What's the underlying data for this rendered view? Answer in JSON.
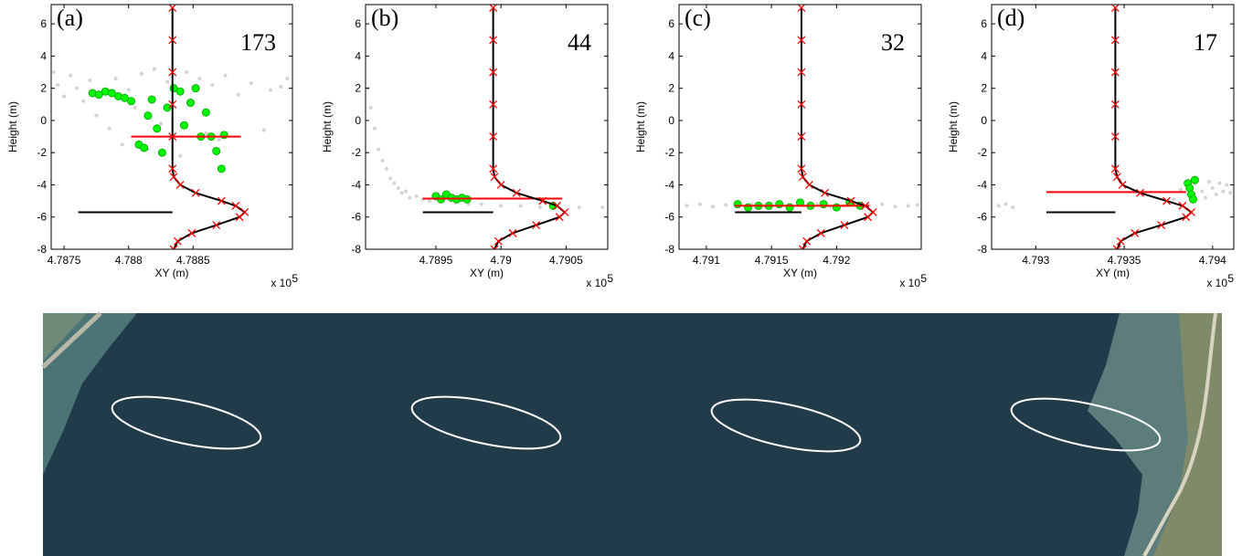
{
  "chart_data": [
    {
      "type": "scatter",
      "panel_label": "(a)",
      "count_label": "173",
      "xlabel": "XY (m)",
      "ylabel": "Height (m)",
      "x_scale_base": "x 10",
      "x_scale_exponent": "5",
      "xlim": [
        478740,
        478927
      ],
      "ylim": [
        -8,
        7.2
      ],
      "xticks": [
        {
          "value": 478750,
          "label": "4.7875"
        },
        {
          "value": 478800,
          "label": "4.788"
        },
        {
          "value": 478850,
          "label": "4.7885"
        }
      ],
      "yticks": [
        -8,
        -6,
        -4,
        -2,
        0,
        2,
        4,
        6
      ],
      "series": [
        {
          "kind": "points",
          "color": "#d3d3d3",
          "x": [
            478742,
            478745,
            478750,
            478755,
            478760,
            478765,
            478770,
            478775,
            478780,
            478785,
            478790,
            478795,
            478800,
            478805,
            478810,
            478815,
            478820,
            478825,
            478830,
            478840,
            478845,
            478850,
            478855,
            478860,
            478865,
            478870,
            478875,
            478885,
            478895,
            478905,
            478910,
            478918,
            478923
          ],
          "y": [
            3,
            2.2,
            1.5,
            2.8,
            2.0,
            1.2,
            2.5,
            0.3,
            1.8,
            -0.5,
            2.6,
            -1.5,
            1.9,
            0.8,
            2.9,
            -1.8,
            3.2,
            -0.2,
            2.4,
            -2.2,
            3.0,
            1.0,
            2.6,
            -0.8,
            2.2,
            -1.2,
            2.8,
            1.6,
            2.3,
            -0.6,
            1.9,
            2.1,
            2.6
          ]
        },
        {
          "kind": "points",
          "color": "#00ff00",
          "x": [
            478772,
            478777,
            478782,
            478787,
            478792,
            478797,
            478802,
            478808,
            478812,
            478815,
            478818,
            478822,
            478826,
            478830,
            478835,
            478840,
            478843,
            478848,
            478852,
            478856,
            478860,
            478864,
            478868,
            478872,
            478874
          ],
          "y": [
            1.7,
            1.6,
            1.8,
            1.7,
            1.5,
            1.4,
            1.2,
            -1.5,
            -1.7,
            0.3,
            1.3,
            -0.5,
            -2.0,
            0.8,
            2.0,
            1.8,
            -0.3,
            1.1,
            2.0,
            -1.0,
            0.5,
            -1.0,
            -1.9,
            -3.0,
            -0.9
          ]
        },
        {
          "kind": "line",
          "color": "#ff0000",
          "x": [
            478802,
            478887
          ],
          "y": [
            -1,
            -1
          ]
        },
        {
          "kind": "line",
          "color": "#000000",
          "x": [
            478761,
            478834
          ],
          "y": [
            -5.7,
            -5.7
          ]
        },
        {
          "kind": "curve",
          "color": "#000000",
          "marker_color": "#ff0000",
          "x": [
            478834,
            478834,
            478834,
            478834,
            478834,
            478834,
            478835,
            478840,
            478852,
            478872,
            478883,
            478890,
            478886,
            478868,
            478849,
            478838,
            478835
          ],
          "y": [
            7,
            5,
            3,
            1,
            -1,
            -3,
            -3.5,
            -4,
            -4.5,
            -5,
            -5.3,
            -5.7,
            -6,
            -6.5,
            -7,
            -7.5,
            -8
          ]
        }
      ]
    },
    {
      "type": "scatter",
      "panel_label": "(b)",
      "count_label": "44",
      "xlabel": "XY (m)",
      "ylabel": "Height (m)",
      "x_scale_base": "x 10",
      "x_scale_exponent": "5",
      "xlim": [
        478896,
        479082
      ],
      "ylim": [
        -8,
        7.2
      ],
      "xticks": [
        {
          "value": 478950,
          "label": "4.7895"
        },
        {
          "value": 479000,
          "label": "4.79"
        },
        {
          "value": 479050,
          "label": "4.7905"
        }
      ],
      "yticks": [
        -8,
        -6,
        -4,
        -2,
        0,
        2,
        4,
        6
      ],
      "series": [
        {
          "kind": "points",
          "color": "#d3d3d3",
          "x": [
            478898,
            478900,
            478903,
            478906,
            478909,
            478912,
            478915,
            478918,
            478921,
            478924,
            478927,
            478930,
            478935,
            478940,
            478945,
            478955,
            478965,
            478975,
            478985,
            479000,
            479015,
            479030,
            479060,
            479078
          ],
          "y": [
            2.0,
            0.8,
            -0.5,
            -1.8,
            -2.5,
            -3.0,
            -3.6,
            -3.9,
            -4.2,
            -4.5,
            -4.4,
            -4.8,
            -4.7,
            -4.9,
            -5.0,
            -5.0,
            -5.1,
            -5.2,
            -5.2,
            -5.3,
            -5.3,
            -5.4,
            -5.4,
            -5.4
          ]
        },
        {
          "kind": "points",
          "color": "#00ff00",
          "x": [
            478950,
            478954,
            478958,
            478962,
            478966,
            478970,
            478974,
            479040
          ],
          "y": [
            -4.7,
            -4.9,
            -4.6,
            -4.8,
            -4.9,
            -4.8,
            -4.9,
            -5.3
          ]
        },
        {
          "kind": "line",
          "color": "#ff0000",
          "x": [
            478940,
            479047
          ],
          "y": [
            -4.85,
            -4.85
          ]
        },
        {
          "kind": "line",
          "color": "#000000",
          "x": [
            478940,
            478994
          ],
          "y": [
            -5.7,
            -5.7
          ]
        },
        {
          "kind": "curve",
          "color": "#000000",
          "marker_color": "#ff0000",
          "x": [
            478994,
            478994,
            478994,
            478994,
            478994,
            478994,
            478995,
            479000,
            479012,
            479032,
            479043,
            479049,
            479045,
            479027,
            479009,
            478998,
            478995
          ],
          "y": [
            7,
            5,
            3,
            1,
            -1,
            -3,
            -3.5,
            -4,
            -4.5,
            -5,
            -5.3,
            -5.7,
            -6,
            -6.5,
            -7,
            -7.5,
            -8
          ]
        }
      ]
    },
    {
      "type": "scatter",
      "panel_label": "(c)",
      "count_label": "32",
      "xlabel": "XY (m)",
      "ylabel": "Height (m)",
      "x_scale_base": "x 10",
      "x_scale_exponent": "5",
      "xlim": [
        479079,
        479265
      ],
      "ylim": [
        -8,
        7.2
      ],
      "xticks": [
        {
          "value": 479100,
          "label": "4.791"
        },
        {
          "value": 479150,
          "label": "4.7915"
        },
        {
          "value": 479200,
          "label": "4.792"
        }
      ],
      "yticks": [
        -8,
        -6,
        -4,
        -2,
        0,
        2,
        4,
        6
      ],
      "series": [
        {
          "kind": "points",
          "color": "#d3d3d3",
          "x": [
            479085,
            479095,
            479105,
            479115,
            479125,
            479135,
            479145,
            479155,
            479165,
            479175,
            479185,
            479195,
            479205,
            479215,
            479225,
            479235,
            479245,
            479255,
            479262
          ],
          "y": [
            -5.3,
            -5.2,
            -5.35,
            -5.25,
            -5.3,
            -5.2,
            -5.35,
            -5.3,
            -5.25,
            -5.3,
            -5.2,
            -5.35,
            -5.3,
            -5.25,
            -5.3,
            -5.2,
            -5.35,
            -5.3,
            -5.25
          ]
        },
        {
          "kind": "points",
          "color": "#00ff00",
          "x": [
            479124,
            479132,
            479140,
            479148,
            479156,
            479164,
            479172,
            479180,
            479190,
            479200,
            479210,
            479218
          ],
          "y": [
            -5.2,
            -5.4,
            -5.3,
            -5.3,
            -5.2,
            -5.4,
            -5.1,
            -5.3,
            -5.2,
            -5.4,
            -5.1,
            -5.3
          ]
        },
        {
          "kind": "line",
          "color": "#ff0000",
          "x": [
            479122,
            479225
          ],
          "y": [
            -5.3,
            -5.3
          ]
        },
        {
          "kind": "line",
          "color": "#000000",
          "x": [
            479122,
            479173
          ],
          "y": [
            -5.7,
            -5.7
          ]
        },
        {
          "kind": "curve",
          "color": "#000000",
          "marker_color": "#ff0000",
          "x": [
            479173,
            479173,
            479173,
            479173,
            479173,
            479173,
            479174,
            479179,
            479191,
            479211,
            479222,
            479228,
            479224,
            479206,
            479188,
            479177,
            479174
          ],
          "y": [
            7,
            5,
            3,
            1,
            -1,
            -3,
            -3.5,
            -4,
            -4.5,
            -5,
            -5.3,
            -5.7,
            -6,
            -6.5,
            -7,
            -7.5,
            -8
          ]
        }
      ]
    },
    {
      "type": "scatter",
      "panel_label": "(d)",
      "count_label": "17",
      "xlabel": "XY (m)",
      "ylabel": "Height (m)",
      "x_scale_base": "x 10",
      "x_scale_exponent": "5",
      "xlim": [
        479275,
        479412
      ],
      "ylim": [
        -8,
        7.2
      ],
      "xticks": [
        {
          "value": 479300,
          "label": "4.793"
        },
        {
          "value": 479350,
          "label": "4.7935"
        },
        {
          "value": 479400,
          "label": "4.794"
        }
      ],
      "yticks": [
        -8,
        -6,
        -4,
        -2,
        0,
        2,
        4,
        6
      ],
      "series": [
        {
          "kind": "points",
          "color": "#d3d3d3",
          "x": [
            479279,
            479283,
            479287,
            479378,
            479382,
            479386,
            479390,
            479394,
            479396,
            479398,
            479400,
            479402,
            479404,
            479406,
            479408,
            479410
          ],
          "y": [
            -5.3,
            -5.2,
            -5.4,
            -4.9,
            -4.3,
            -4.6,
            -3.9,
            -4.4,
            -4.8,
            -3.8,
            -4.2,
            -4.6,
            -3.9,
            -4.4,
            -4.0,
            -4.5
          ]
        },
        {
          "kind": "points",
          "color": "#00ff00",
          "x": [
            479386,
            479387,
            479388,
            479389,
            479390
          ],
          "y": [
            -3.9,
            -4.2,
            -4.6,
            -4.9,
            -3.7
          ]
        },
        {
          "kind": "line",
          "color": "#ff0000",
          "x": [
            479306,
            479385
          ],
          "y": [
            -4.45,
            -4.45
          ]
        },
        {
          "kind": "line",
          "color": "#000000",
          "x": [
            479306,
            479345
          ],
          "y": [
            -5.7,
            -5.7
          ]
        },
        {
          "kind": "curve",
          "color": "#000000",
          "marker_color": "#ff0000",
          "x": [
            479345,
            479345,
            479345,
            479345,
            479345,
            479345,
            479346,
            479349,
            479359,
            479374,
            479383,
            479388,
            479385,
            479371,
            479356,
            479348,
            479346
          ],
          "y": [
            7,
            5,
            3,
            1,
            -1,
            -3,
            -3.5,
            -4,
            -4.5,
            -5,
            -5.3,
            -5.7,
            -6,
            -6.5,
            -7,
            -7.5,
            -8
          ]
        }
      ]
    }
  ]
}
